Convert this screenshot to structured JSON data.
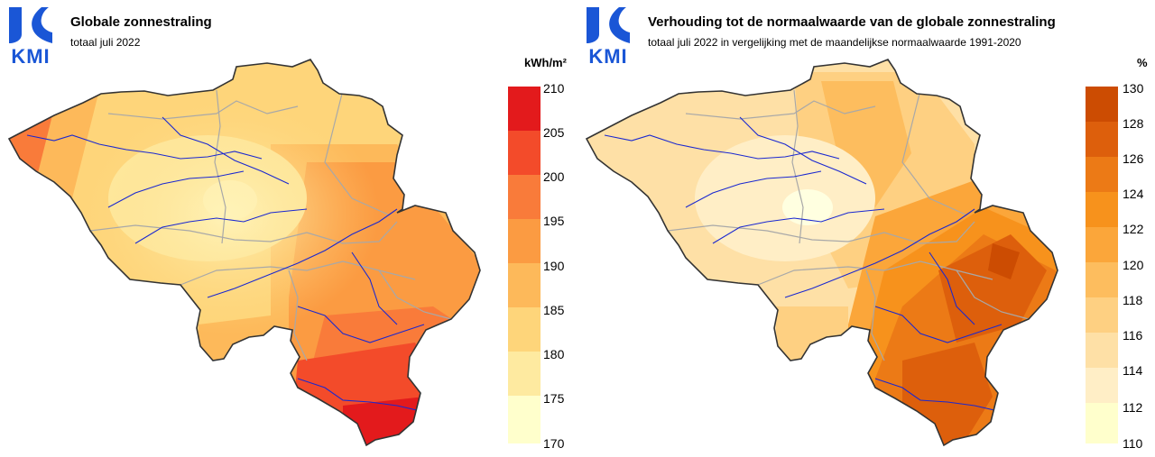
{
  "logo": {
    "text": "KMI",
    "color": "#1a56d6"
  },
  "panels": [
    {
      "title": "Globale zonnestraling",
      "subtitle": "totaal juli 2022",
      "unit": "kWh/m²",
      "legend_ticks": [
        "210",
        "205",
        "200",
        "195",
        "190",
        "185",
        "180",
        "175",
        "170"
      ],
      "legend_colors": [
        "#e31a1c",
        "#f34b2a",
        "#f97b3a",
        "#fb9b42",
        "#fdb95a",
        "#fed57a",
        "#feeaa0",
        "#ffffcc"
      ]
    },
    {
      "title": "Verhouding tot de normaalwaarde van de globale zonnestraling",
      "subtitle": "totaal juli 2022 in vergelijking met de maandelijkse normaalwaarde 1991-2020",
      "unit": "%",
      "legend_ticks": [
        "130",
        "128",
        "126",
        "124",
        "122",
        "120",
        "118",
        "116",
        "114",
        "112",
        "110"
      ],
      "legend_colors": [
        "#cc4c02",
        "#dd5f0c",
        "#ec7a16",
        "#f7921c",
        "#fba63a",
        "#fdbd5e",
        "#fed082",
        "#fee0a6",
        "#ffeec6",
        "#ffffcc"
      ]
    }
  ],
  "chart_data": [
    {
      "type": "heatmap",
      "title": "Globale zonnestraling",
      "subtitle": "totaal juli 2022",
      "unit": "kWh/m²",
      "scale_min": 170,
      "scale_max": 210,
      "scale_step": 5,
      "pattern": "lowest in the center (Brabant), increasing towards the coast in the west and strongly towards the southeast, highest in the far south (Gaume)"
    },
    {
      "type": "heatmap",
      "title": "Verhouding tot de normaalwaarde van de globale zonnestraling",
      "subtitle": "totaal juli 2022 in vergelijking met de maandelijkse normaalwaarde 1991-2020",
      "unit": "%",
      "scale_min": 110,
      "scale_max": 130,
      "scale_step": 2,
      "pattern": "lowest in the center and west, highest in the east and southeast (Ardennes)"
    }
  ]
}
